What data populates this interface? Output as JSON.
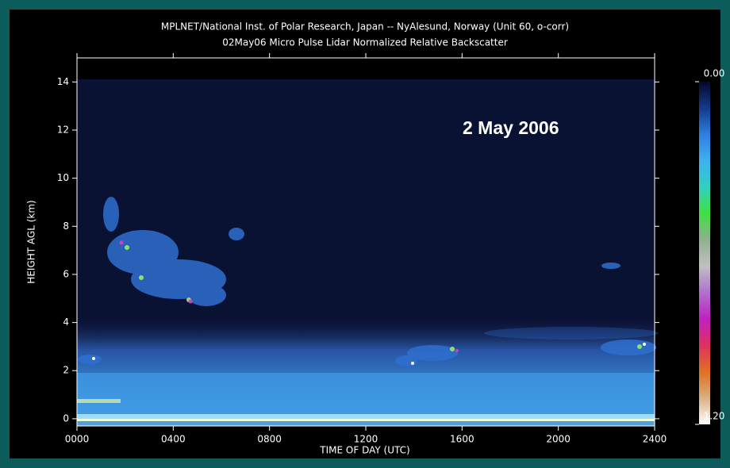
{
  "chart_data": {
    "type": "heatmap",
    "title": "MPLNET/National Inst. of Polar Research, Japan -- NyAlesund, Norway (Unit 60, o-corr)",
    "subtitle": "02May06 Micro Pulse Lidar Normalized Relative Backscatter",
    "annotation": "2 May 2006",
    "xlabel": "TIME OF DAY (UTC)",
    "ylabel": "HEIGHT AGL (km)",
    "xlim": [
      0,
      24
    ],
    "xticks": [
      {
        "value": 0,
        "label": "0000"
      },
      {
        "value": 4,
        "label": "0400"
      },
      {
        "value": 8,
        "label": "0800"
      },
      {
        "value": 12,
        "label": "1200"
      },
      {
        "value": 16,
        "label": "1600"
      },
      {
        "value": 20,
        "label": "2000"
      },
      {
        "value": 24,
        "label": "2400"
      }
    ],
    "ylim": [
      -0.3,
      15
    ],
    "yticks": [
      0,
      2,
      4,
      6,
      8,
      10,
      12,
      14
    ],
    "colorbar": {
      "lim": [
        0,
        1.2
      ],
      "ticks": [
        {
          "value": 0,
          "label": "0.00"
        },
        {
          "value": 1.2,
          "label": "1.20"
        }
      ],
      "colors": [
        "#05082a",
        "#123a8a",
        "#2f7fe0",
        "#40b0f0",
        "#30d0c0",
        "#40e040",
        "#90b090",
        "#c0c0c0",
        "#b070d0",
        "#c020c0",
        "#e03060",
        "#e07020",
        "#d8b080",
        "#ffffff"
      ]
    }
  }
}
